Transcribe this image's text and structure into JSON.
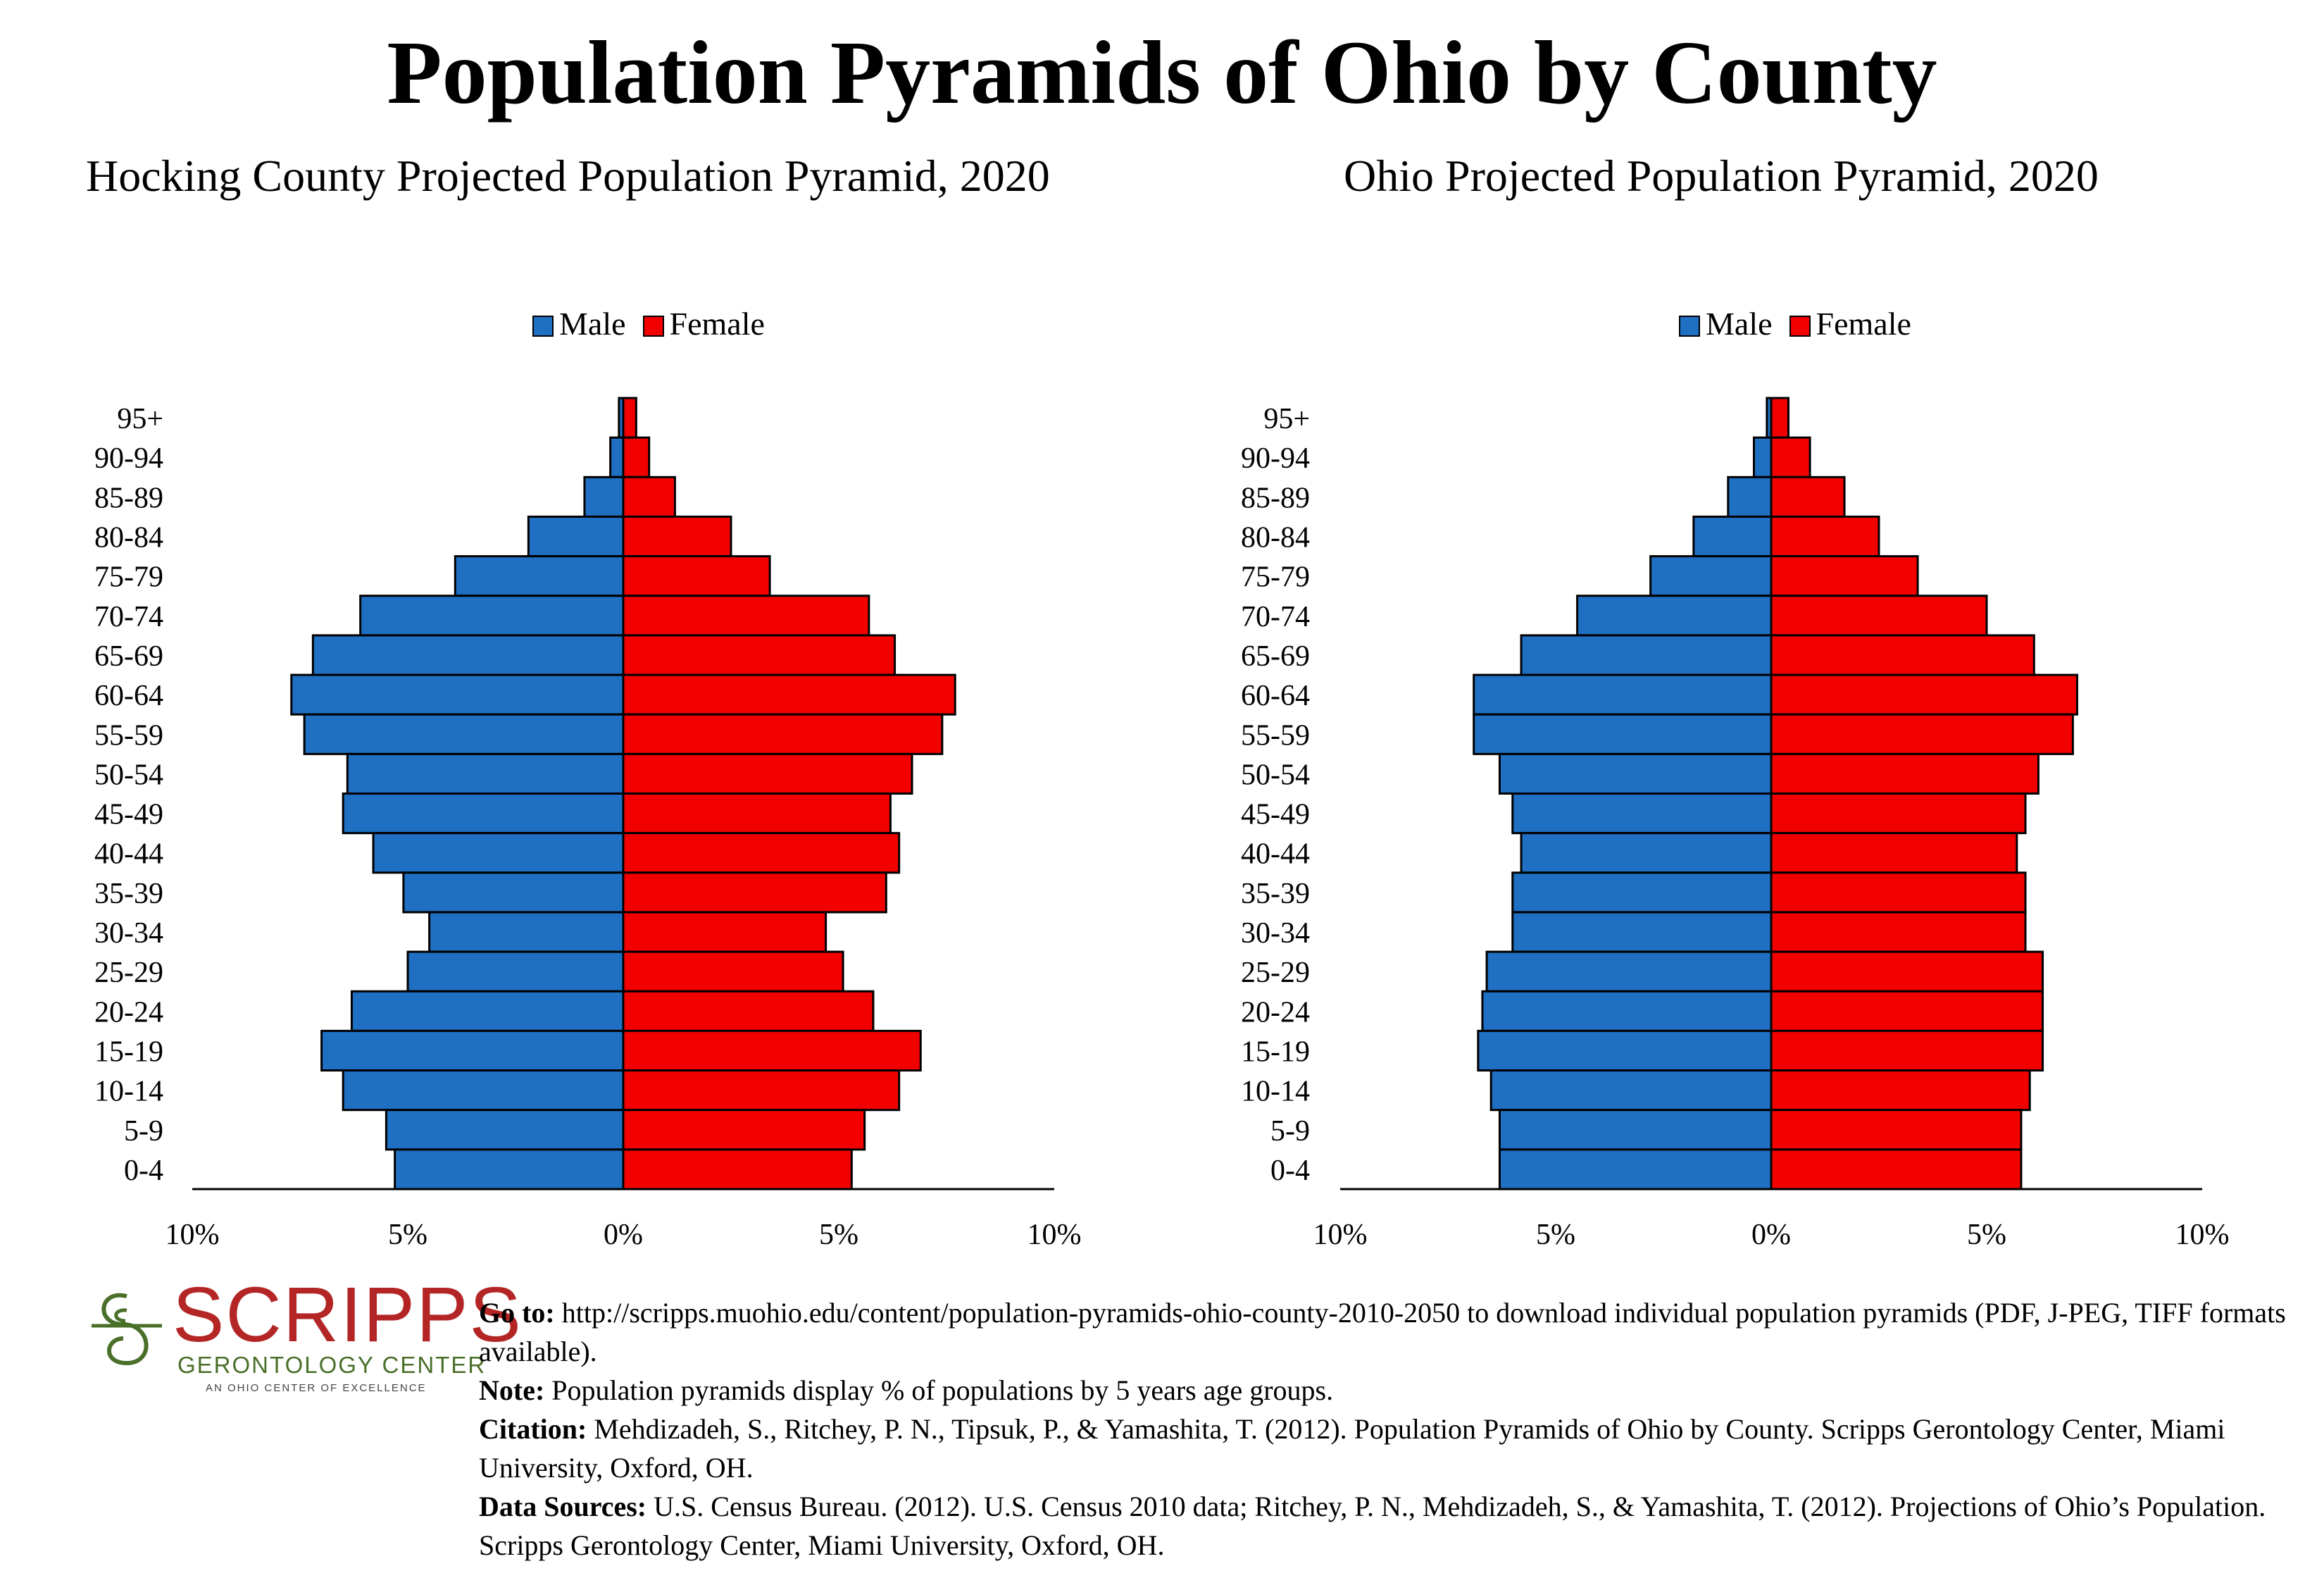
{
  "main_title": "Population Pyramids of Ohio by County",
  "colors": {
    "male": "#1f6fc2",
    "female": "#f20000"
  },
  "legend": {
    "male": "Male",
    "female": "Female"
  },
  "chart_data": [
    {
      "type": "bar",
      "title": "Hocking County Projected Population Pyramid, 2020",
      "orientation": "horizontal-pyramid",
      "categories": [
        "95+",
        "90-94",
        "85-89",
        "80-84",
        "75-79",
        "70-74",
        "65-69",
        "60-64",
        "55-59",
        "50-54",
        "45-49",
        "40-44",
        "35-39",
        "30-34",
        "25-29",
        "20-24",
        "15-19",
        "10-14",
        "5-9",
        "0-4"
      ],
      "series": [
        {
          "name": "Male",
          "values": [
            0.1,
            0.3,
            0.9,
            2.2,
            3.9,
            6.1,
            7.2,
            7.7,
            7.4,
            6.4,
            6.5,
            5.8,
            5.1,
            4.5,
            5.0,
            6.3,
            7.0,
            6.5,
            5.5,
            5.3
          ]
        },
        {
          "name": "Female",
          "values": [
            0.3,
            0.6,
            1.2,
            2.5,
            3.4,
            5.7,
            6.3,
            7.7,
            7.4,
            6.7,
            6.2,
            6.4,
            6.1,
            4.7,
            5.1,
            5.8,
            6.9,
            6.4,
            5.6,
            5.3
          ]
        }
      ],
      "xlim": [
        -10,
        10
      ],
      "xticks": [
        "10%",
        "5%",
        "0%",
        "5%",
        "10%"
      ],
      "legend_position": "top"
    },
    {
      "type": "bar",
      "title": "Ohio Projected Population Pyramid, 2020",
      "orientation": "horizontal-pyramid",
      "categories": [
        "95+",
        "90-94",
        "85-89",
        "80-84",
        "75-79",
        "70-74",
        "65-69",
        "60-64",
        "55-59",
        "50-54",
        "45-49",
        "40-44",
        "35-39",
        "30-34",
        "25-29",
        "20-24",
        "15-19",
        "10-14",
        "5-9",
        "0-4"
      ],
      "series": [
        {
          "name": "Male",
          "values": [
            0.1,
            0.4,
            1.0,
            1.8,
            2.8,
            4.5,
            5.8,
            6.9,
            6.9,
            6.3,
            6.0,
            5.8,
            6.0,
            6.0,
            6.6,
            6.7,
            6.8,
            6.5,
            6.3,
            6.3
          ]
        },
        {
          "name": "Female",
          "values": [
            0.4,
            0.9,
            1.7,
            2.5,
            3.4,
            5.0,
            6.1,
            7.1,
            7.0,
            6.2,
            5.9,
            5.7,
            5.9,
            5.9,
            6.3,
            6.3,
            6.3,
            6.0,
            5.8,
            5.8
          ]
        }
      ],
      "xlim": [
        -10,
        10
      ],
      "xticks": [
        "10%",
        "5%",
        "0%",
        "5%",
        "10%"
      ],
      "legend_position": "top"
    }
  ],
  "logo": {
    "word": "SCRIPPS",
    "sub": "GERONTOLOGY CENTER",
    "tag": "AN OHIO CENTER OF EXCELLENCE"
  },
  "notes": {
    "goto_label": "Go to:",
    "goto_text": " http://scripps.muohio.edu/content/population-pyramids-ohio-county-2010-2050 to download individual population pyramids (PDF, J-PEG, TIFF formats available).",
    "note_label": "Note:",
    "note_text": " Population pyramids display % of populations by 5 years age groups.",
    "citation_label": "Citation:",
    "citation_text": " Mehdizadeh, S., Ritchey, P. N., Tipsuk, P., & Yamashita, T. (2012). Population Pyramids of Ohio by County. Scripps Gerontology Center, Miami University, Oxford, OH.",
    "sources_label": "Data Sources:",
    "sources_text": " U.S. Census Bureau. (2012). U.S. Census 2010 data; Ritchey, P. N., Mehdizadeh, S., & Yamashita, T. (2012). Projections of Ohio’s Population. Scripps Gerontology Center, Miami University, Oxford, OH."
  }
}
